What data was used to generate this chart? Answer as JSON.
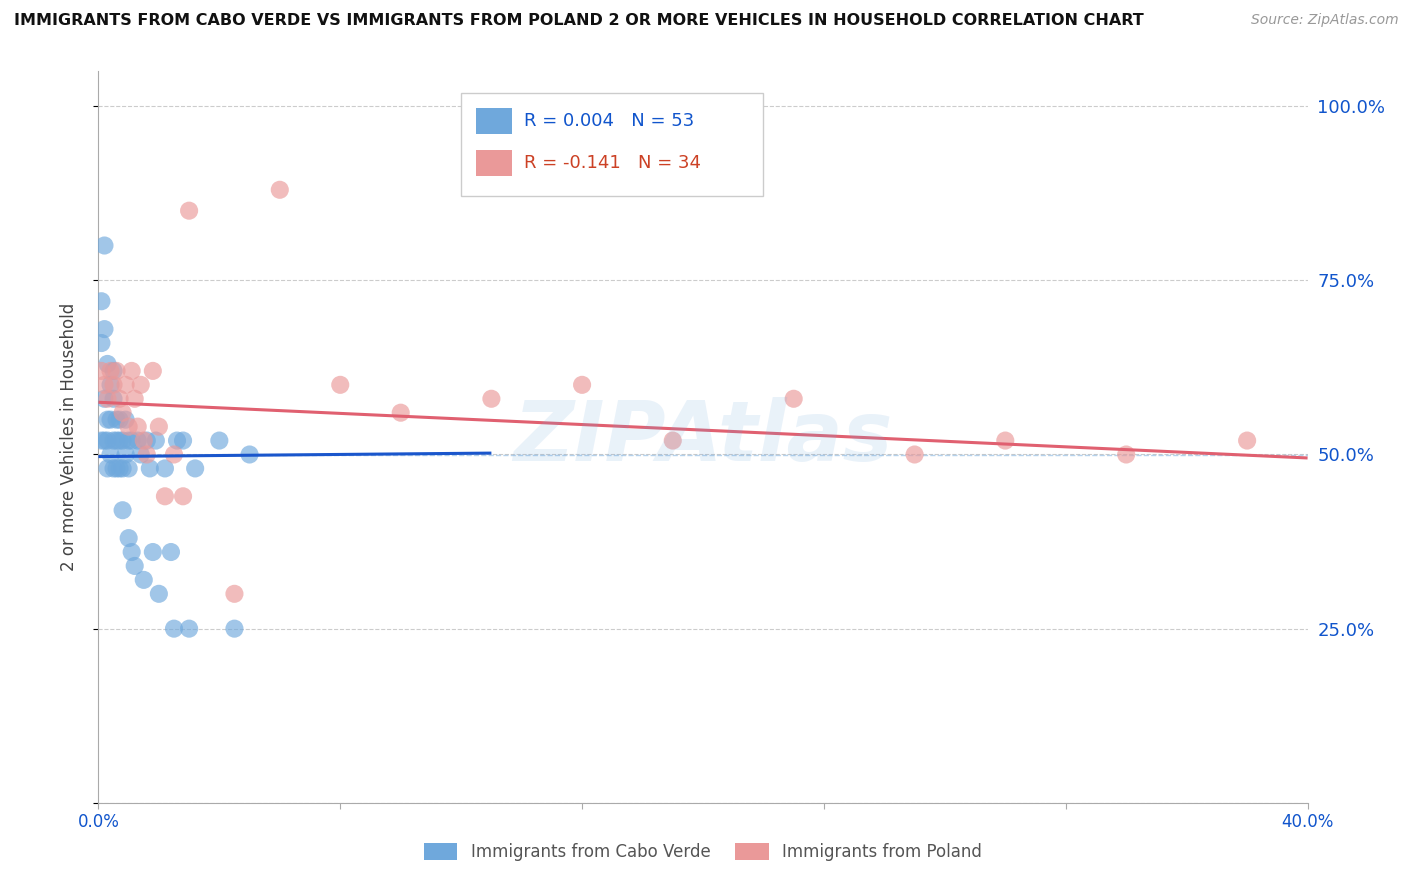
{
  "title": "IMMIGRANTS FROM CABO VERDE VS IMMIGRANTS FROM POLAND 2 OR MORE VEHICLES IN HOUSEHOLD CORRELATION CHART",
  "source": "Source: ZipAtlas.com",
  "ylabel": "2 or more Vehicles in Household",
  "cabo_verde_R": 0.004,
  "cabo_verde_N": 53,
  "poland_R": -0.141,
  "poland_N": 34,
  "cabo_verde_color": "#6fa8dc",
  "poland_color": "#ea9999",
  "trendline_cabo_verde_color": "#1a56cc",
  "trendline_poland_color": "#e06070",
  "background_color": "#ffffff",
  "watermark": "ZIPAtlas",
  "xlim": [
    0.0,
    0.4
  ],
  "ylim": [
    0.0,
    1.05
  ],
  "cv_trendline_x": [
    0.0,
    0.13
  ],
  "cv_trendline_y": [
    0.497,
    0.502
  ],
  "pl_trendline_x": [
    0.0,
    0.4
  ],
  "pl_trendline_y": [
    0.575,
    0.495
  ],
  "cabo_verde_x": [
    0.001,
    0.001,
    0.001,
    0.002,
    0.002,
    0.002,
    0.002,
    0.003,
    0.003,
    0.003,
    0.003,
    0.004,
    0.004,
    0.004,
    0.005,
    0.005,
    0.005,
    0.005,
    0.006,
    0.006,
    0.006,
    0.007,
    0.007,
    0.007,
    0.008,
    0.008,
    0.008,
    0.009,
    0.009,
    0.01,
    0.01,
    0.01,
    0.011,
    0.011,
    0.012,
    0.013,
    0.014,
    0.015,
    0.016,
    0.017,
    0.018,
    0.019,
    0.02,
    0.022,
    0.024,
    0.025,
    0.026,
    0.028,
    0.03,
    0.032,
    0.04,
    0.045,
    0.05
  ],
  "cabo_verde_y": [
    0.52,
    0.66,
    0.72,
    0.8,
    0.68,
    0.58,
    0.52,
    0.63,
    0.55,
    0.52,
    0.48,
    0.6,
    0.55,
    0.5,
    0.62,
    0.58,
    0.52,
    0.48,
    0.55,
    0.52,
    0.48,
    0.55,
    0.52,
    0.48,
    0.52,
    0.48,
    0.42,
    0.55,
    0.5,
    0.52,
    0.48,
    0.38,
    0.52,
    0.36,
    0.34,
    0.52,
    0.5,
    0.32,
    0.52,
    0.48,
    0.36,
    0.52,
    0.3,
    0.48,
    0.36,
    0.25,
    0.52,
    0.52,
    0.25,
    0.48,
    0.52,
    0.25,
    0.5
  ],
  "poland_x": [
    0.001,
    0.002,
    0.003,
    0.004,
    0.005,
    0.006,
    0.007,
    0.008,
    0.009,
    0.01,
    0.011,
    0.012,
    0.013,
    0.014,
    0.015,
    0.016,
    0.018,
    0.02,
    0.022,
    0.025,
    0.028,
    0.03,
    0.045,
    0.06,
    0.08,
    0.1,
    0.13,
    0.16,
    0.19,
    0.23,
    0.27,
    0.3,
    0.34,
    0.38
  ],
  "poland_y": [
    0.62,
    0.6,
    0.58,
    0.62,
    0.6,
    0.62,
    0.58,
    0.56,
    0.6,
    0.54,
    0.62,
    0.58,
    0.54,
    0.6,
    0.52,
    0.5,
    0.62,
    0.54,
    0.44,
    0.5,
    0.44,
    0.85,
    0.3,
    0.88,
    0.6,
    0.56,
    0.58,
    0.6,
    0.52,
    0.58,
    0.5,
    0.52,
    0.5,
    0.52
  ]
}
